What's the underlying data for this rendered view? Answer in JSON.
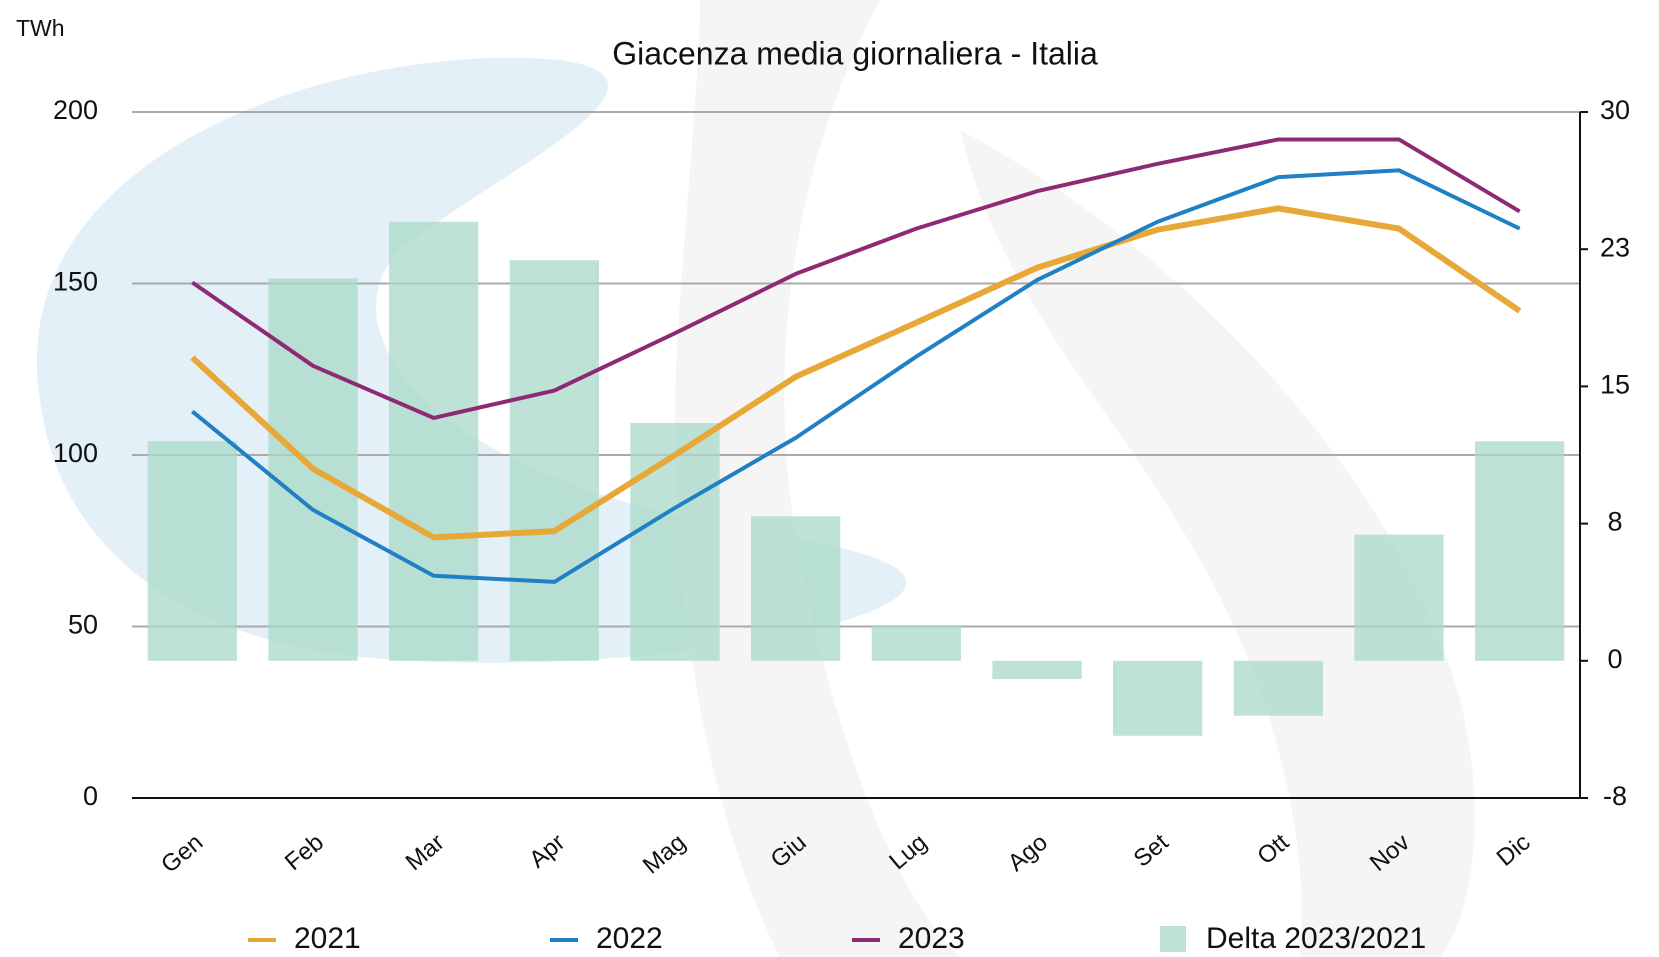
{
  "chart_data": {
    "type": "line",
    "title": "Giacenza media giornaliera - Italia",
    "y_label": "TWh",
    "categories": [
      "Gen",
      "Feb",
      "Mar",
      "Apr",
      "Mag",
      "Giu",
      "Lug",
      "Ago",
      "Set",
      "Ott",
      "Nov",
      "Dic"
    ],
    "ylim": [
      0,
      200
    ],
    "yticks": [
      0,
      50,
      100,
      150,
      200
    ],
    "y2lim": [
      -7.5,
      30
    ],
    "y2ticks": [
      {
        "value": -7.5,
        "label": "-8"
      },
      0,
      {
        "value": 7.5,
        "label": "8"
      },
      15,
      {
        "value": 22.5,
        "label": "23"
      },
      30
    ],
    "grid": true,
    "series": [
      {
        "name": "2021",
        "type": "line",
        "color": "#e8a838",
        "values": [
          128.4,
          96,
          76,
          77.8,
          100,
          122.8,
          138.6,
          154.6,
          165.7,
          171.9,
          166,
          142
        ]
      },
      {
        "name": "2022",
        "type": "line",
        "color": "#1f80c4",
        "values": [
          112.7,
          84,
          64.8,
          63,
          84.6,
          105,
          128.7,
          151,
          168,
          181,
          183,
          166
        ]
      },
      {
        "name": "2023",
        "type": "line",
        "color": "#8e2a74",
        "values": [
          150.3,
          126,
          110.8,
          118.8,
          135.5,
          152.8,
          166,
          176.9,
          184.9,
          192,
          192,
          171
        ]
      },
      {
        "name": "Delta 2023/2021",
        "type": "bar",
        "axis": "y2",
        "color": "#a8d9c8",
        "values": [
          12,
          20.9,
          24,
          21.9,
          13,
          7.9,
          1.9,
          -1,
          -4.1,
          -3,
          6.9,
          12
        ]
      }
    ]
  }
}
